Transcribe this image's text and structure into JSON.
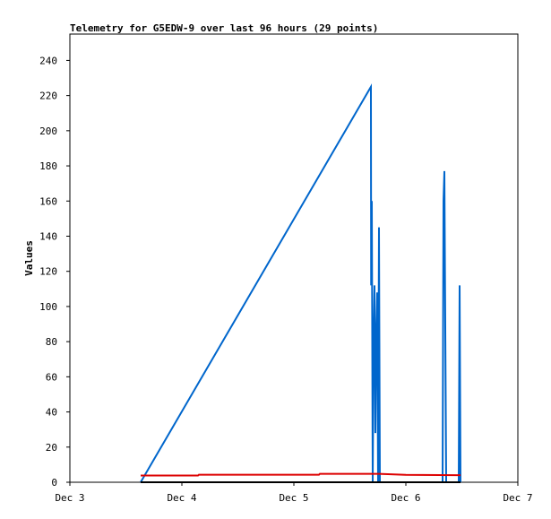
{
  "chart_data": {
    "type": "line",
    "title": "Telemetry for G5EDW-9 over last 96 hours (29 points)",
    "y_label": "Values",
    "xlim": [
      3,
      7
    ],
    "xticks": [
      {
        "value": 3,
        "label": "Dec 3"
      },
      {
        "value": 4,
        "label": "Dec 4"
      },
      {
        "value": 5,
        "label": "Dec 5"
      },
      {
        "value": 6,
        "label": "Dec 6"
      },
      {
        "value": 7,
        "label": "Dec 7"
      }
    ],
    "ylim": [
      0,
      255
    ],
    "yticks": [
      0,
      20,
      40,
      60,
      80,
      100,
      120,
      140,
      160,
      180,
      200,
      220,
      240
    ],
    "series": [
      {
        "color": "#0066cc",
        "x": [
          3.632,
          5.688,
          5.69,
          5.696,
          5.704,
          5.712,
          5.72,
          5.728,
          5.736,
          5.744,
          5.752,
          5.76,
          5.768,
          6.328,
          6.336,
          6.344,
          6.352,
          6.36,
          6.472,
          6.48,
          6.488
        ],
        "values": [
          0,
          225,
          112,
          160,
          0,
          80,
          112,
          28,
          84,
          108,
          0,
          145,
          0,
          0,
          160,
          177,
          88,
          0,
          0,
          112,
          0
        ]
      },
      {
        "color": "#dd0000",
        "x": [
          3.632,
          4.144,
          4.152,
          5.224,
          5.232,
          5.76,
          6.0,
          6.488
        ],
        "values": [
          3.8,
          3.8,
          4.3,
          4.3,
          4.8,
          4.8,
          4.2,
          4
        ]
      },
      {
        "color": "#000000",
        "x": [
          3.632,
          6.488
        ],
        "values": [
          0,
          0
        ]
      }
    ]
  }
}
